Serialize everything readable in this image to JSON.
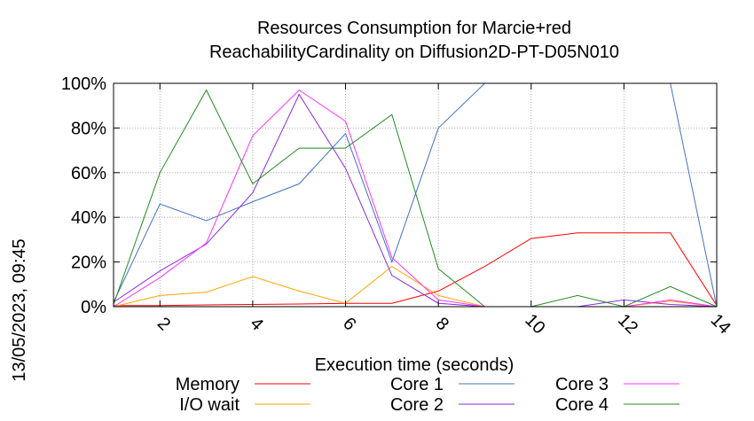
{
  "chart_data": {
    "type": "line",
    "title": "Resources Consumption for Marcie+red",
    "subtitle": "ReachabilityCardinality on Diffusion2D-PT-D05N010",
    "xlabel": "Execution time (seconds)",
    "side_label": "13/05/2023, 09:45",
    "xlim": [
      1,
      14
    ],
    "ylim": [
      0,
      100
    ],
    "x_ticks": [
      2,
      4,
      6,
      8,
      10,
      12,
      14
    ],
    "y_ticks": [
      0,
      20,
      40,
      60,
      80,
      100
    ],
    "y_tick_labels": [
      "0%",
      "20%",
      "40%",
      "60%",
      "80%",
      "100%"
    ],
    "grid": true,
    "legend_position": "bottom",
    "x": [
      1,
      2,
      3,
      4,
      5,
      6,
      7,
      8,
      9,
      10,
      11,
      12,
      13,
      14
    ],
    "series": [
      {
        "name": "Memory",
        "color": "#ff0000",
        "values": [
          0.5,
          0.5,
          0.8,
          1.0,
          1.2,
          1.5,
          1.5,
          7,
          18,
          30.5,
          33,
          33,
          33,
          0.5
        ]
      },
      {
        "name": "I/O wait",
        "color": "#ffa500",
        "values": [
          0,
          5,
          6.5,
          13.5,
          7,
          1.5,
          18,
          5,
          0,
          0,
          0,
          0,
          2.5,
          0
        ]
      },
      {
        "name": "Core 1",
        "color": "#4472c4",
        "values": [
          2,
          46,
          38.5,
          47,
          55,
          77.5,
          20,
          80,
          100,
          100,
          100,
          100,
          100,
          0
        ]
      },
      {
        "name": "Core 2",
        "color": "#8a2be2",
        "values": [
          2,
          16,
          28,
          51,
          95,
          62,
          14,
          1.5,
          0,
          0,
          0,
          3,
          1,
          0
        ]
      },
      {
        "name": "Core 3",
        "color": "#ff33ff",
        "values": [
          0,
          13,
          28.5,
          76.5,
          97,
          83,
          22,
          3,
          0,
          0,
          0,
          0,
          3,
          0
        ]
      },
      {
        "name": "Core 4",
        "color": "#228b22",
        "values": [
          1,
          60,
          97,
          55,
          71,
          71,
          86,
          17,
          0,
          0,
          5,
          0,
          9,
          0
        ]
      }
    ]
  }
}
